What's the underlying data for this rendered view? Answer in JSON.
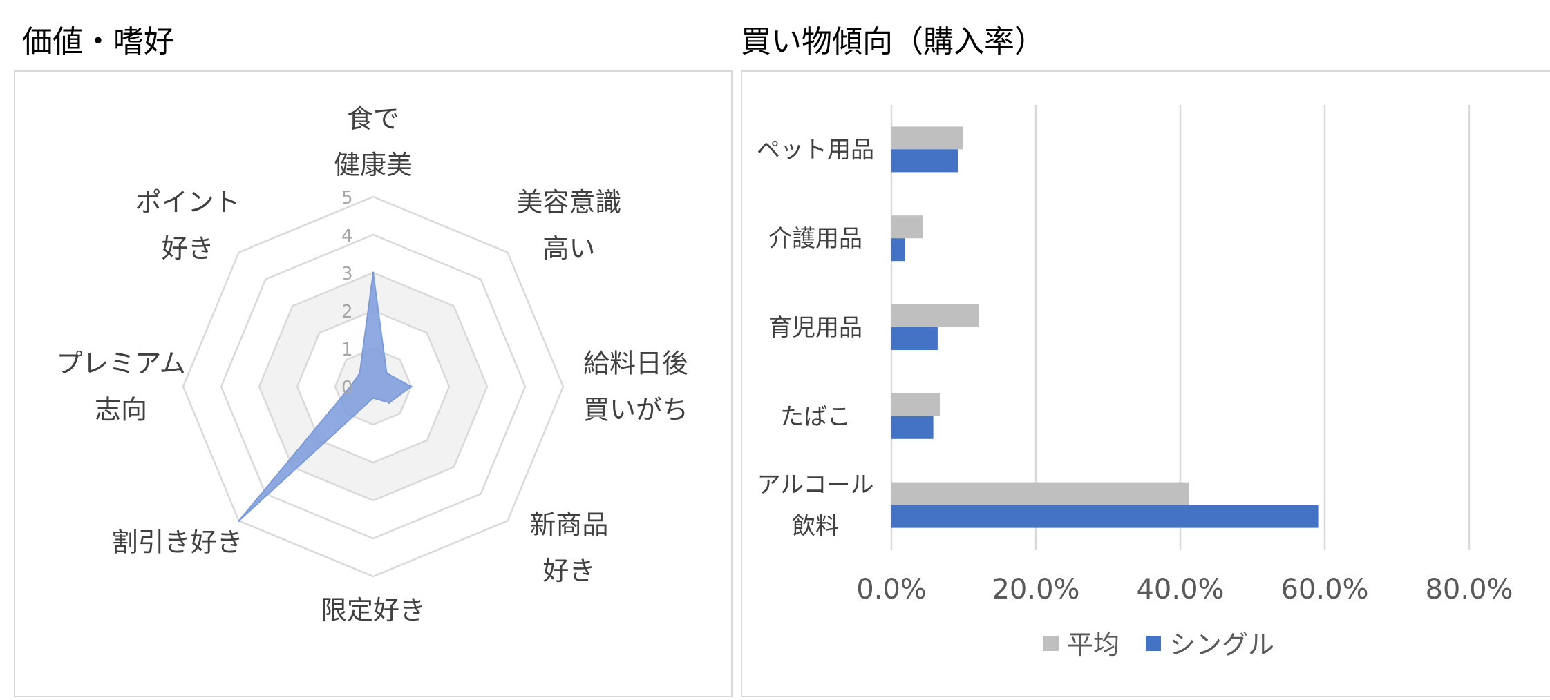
{
  "panels": {
    "left_title": "価値・嗜好",
    "right_title": "買い物傾向（購入率）"
  },
  "colors": {
    "single": "#4472c4",
    "average": "#bfbfbf",
    "radar_fill": "#7b9bdc",
    "grid": "#d9d9d9",
    "band": "#f2f2f2"
  },
  "chart_data": [
    {
      "type": "radar",
      "title": "価値・嗜好",
      "scale": {
        "min": 0,
        "max": 5,
        "ticks": [
          "0",
          "1",
          "2",
          "3",
          "4",
          "5"
        ]
      },
      "axes": [
        [
          "食で",
          "健康美"
        ],
        [
          "美容意識",
          "高い"
        ],
        [
          "給料日後",
          "買いがち"
        ],
        [
          "新商品",
          "好き"
        ],
        [
          "限定好き"
        ],
        [
          "割引き好き"
        ],
        [
          "プレミアム",
          "志向"
        ],
        [
          "ポイント",
          "好き"
        ]
      ],
      "series": [
        {
          "values": [
            3.0,
            0.5,
            1.0,
            0.6,
            0.3,
            5.0,
            0.6,
            0.5
          ]
        }
      ]
    },
    {
      "type": "bar",
      "orientation": "horizontal",
      "title": "買い物傾向（購入率）",
      "categories": [
        "ペット用品",
        "介護用品",
        "育児用品",
        "たばこ",
        "アルコール飲料"
      ],
      "category_lines": [
        [
          "ペット用品"
        ],
        [
          "介護用品"
        ],
        [
          "育児用品"
        ],
        [
          "たばこ"
        ],
        [
          "アルコール",
          "飲料"
        ]
      ],
      "series": [
        {
          "name": "平均",
          "values": [
            0.099,
            0.044,
            0.121,
            0.067,
            0.412
          ]
        },
        {
          "name": "シングル",
          "values": [
            0.092,
            0.019,
            0.064,
            0.058,
            0.591
          ]
        }
      ],
      "xlim": [
        0,
        0.8
      ],
      "xticks": [
        "0.0%",
        "20.0%",
        "40.0%",
        "60.0%",
        "80.0%"
      ],
      "legend": "bottom"
    }
  ]
}
